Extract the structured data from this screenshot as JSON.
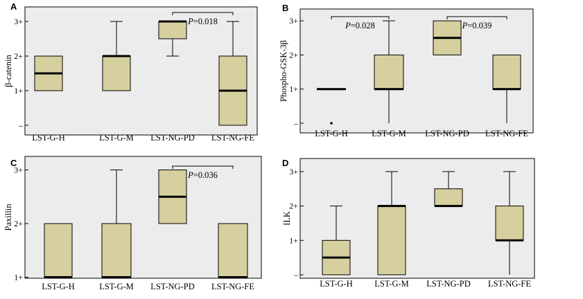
{
  "chart_data": [
    {
      "panel": "A",
      "type": "boxplot",
      "ylabel": "β-catenin",
      "yticks": [
        "3+",
        "2+",
        "1+",
        "–"
      ],
      "categories": [
        "LST-G-H",
        "LST-G-M",
        "LST-NG-PD",
        "LST-NG-FE"
      ],
      "boxes": [
        {
          "min": 1,
          "q1": 1,
          "median": 1.5,
          "q3": 2,
          "max": 2
        },
        {
          "min": 1,
          "q1": 1,
          "median": 2,
          "q3": 2,
          "max": 3
        },
        {
          "min": 2,
          "q1": 2.5,
          "median": 3,
          "q3": 3,
          "max": 3
        },
        {
          "min": 0,
          "q1": 0,
          "median": 1,
          "q3": 2,
          "max": 3
        }
      ],
      "annotations": [
        {
          "from": 2,
          "to": 3,
          "italic": "P",
          "text": "=0.018"
        }
      ]
    },
    {
      "panel": "B",
      "type": "boxplot",
      "ylabel": "Phospho-GSK-3β",
      "yticks": [
        "3+",
        "2+",
        "1+",
        "–"
      ],
      "categories": [
        "LST-G-H",
        "LST-G-M",
        "LST-NG-PD",
        "LST-NG-FE"
      ],
      "boxes": [
        {
          "min": 1,
          "q1": 1,
          "median": 1,
          "q3": 1,
          "max": 1,
          "outliers": [
            0
          ]
        },
        {
          "min": 0,
          "q1": 1,
          "median": 1,
          "q3": 2,
          "max": 3
        },
        {
          "min": 2,
          "q1": 2,
          "median": 2.5,
          "q3": 3,
          "max": 3
        },
        {
          "min": 0,
          "q1": 1,
          "median": 1,
          "q3": 2,
          "max": 2
        }
      ],
      "annotations": [
        {
          "from": 0,
          "to": 1,
          "italic": "P",
          "text": "=0.028"
        },
        {
          "from": 2,
          "to": 3,
          "italic": "P",
          "text": "=0.039"
        }
      ]
    },
    {
      "panel": "C",
      "type": "boxplot",
      "ylabel": "Paxillin",
      "yticks": [
        "3+",
        "2+",
        "1+"
      ],
      "categories": [
        "LST-G-H",
        "LST-G-M",
        "LST-NG-PD",
        "LST-NG-FE"
      ],
      "boxes": [
        {
          "min": 1,
          "q1": 1,
          "median": 1,
          "q3": 2,
          "max": 2
        },
        {
          "min": 1,
          "q1": 1,
          "median": 1,
          "q3": 2,
          "max": 3
        },
        {
          "min": 2,
          "q1": 2,
          "median": 2.5,
          "q3": 3,
          "max": 3
        },
        {
          "min": 1,
          "q1": 1,
          "median": 1,
          "q3": 2,
          "max": 2
        }
      ],
      "annotations": [
        {
          "from": 2,
          "to": 3,
          "italic": "P",
          "text": "=0.036"
        }
      ]
    },
    {
      "panel": "D",
      "type": "boxplot",
      "ylabel": "ILK",
      "yticks": [
        "3+",
        "2+",
        "1+",
        "–"
      ],
      "categories": [
        "LST-G-H",
        "LST-G-M",
        "LST-NG-PD",
        "LST-NG-FE"
      ],
      "boxes": [
        {
          "min": 0,
          "q1": 0,
          "median": 0.5,
          "q3": 1,
          "max": 2
        },
        {
          "min": 0,
          "q1": 0,
          "median": 2,
          "q3": 2,
          "max": 3
        },
        {
          "min": 2,
          "q1": 2,
          "median": 2,
          "q3": 2.5,
          "max": 3
        },
        {
          "min": 0,
          "q1": 1,
          "median": 1,
          "q3": 2,
          "max": 3
        }
      ],
      "annotations": []
    }
  ]
}
